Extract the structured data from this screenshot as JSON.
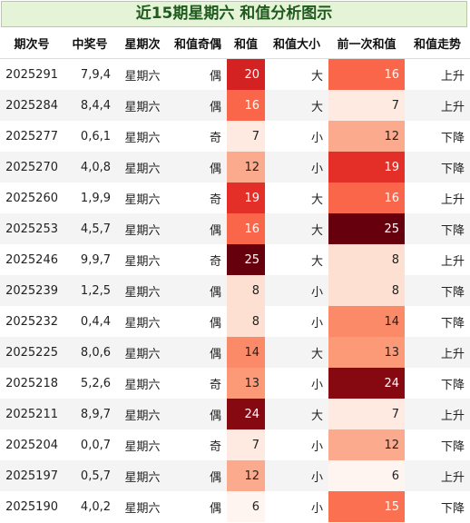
{
  "title": "近15期星期六 和值分析图示",
  "headers": {
    "issue": "期次号",
    "draw": "中奖号",
    "week": "星期次",
    "parity": "和值奇偶",
    "sum": "和值",
    "size": "和值大小",
    "prev_sum": "前一次和值",
    "trend": "和值走势"
  },
  "heat_colors": {
    "6": "#fff5f0",
    "7": "#feeae1",
    "8": "#fee0d2",
    "12": "#fcaa8d",
    "13": "#fc9a77",
    "14": "#fb8a68",
    "15": "#fb7050",
    "16": "#fa6649",
    "19": "#e32f27",
    "20": "#d42121",
    "24": "#860811",
    "25": "#67000d"
  },
  "rows": [
    {
      "issue": "2025291",
      "draw": "7,9,4",
      "week": "星期六",
      "parity": "偶",
      "sum": "20",
      "size": "大",
      "prev_sum": "16",
      "trend": "上升"
    },
    {
      "issue": "2025284",
      "draw": "8,4,4",
      "week": "星期六",
      "parity": "偶",
      "sum": "16",
      "size": "大",
      "prev_sum": "7",
      "trend": "上升"
    },
    {
      "issue": "2025277",
      "draw": "0,6,1",
      "week": "星期六",
      "parity": "奇",
      "sum": "7",
      "size": "小",
      "prev_sum": "12",
      "trend": "下降"
    },
    {
      "issue": "2025270",
      "draw": "4,0,8",
      "week": "星期六",
      "parity": "偶",
      "sum": "12",
      "size": "小",
      "prev_sum": "19",
      "trend": "下降"
    },
    {
      "issue": "2025260",
      "draw": "1,9,9",
      "week": "星期六",
      "parity": "奇",
      "sum": "19",
      "size": "大",
      "prev_sum": "16",
      "trend": "上升"
    },
    {
      "issue": "2025253",
      "draw": "4,5,7",
      "week": "星期六",
      "parity": "偶",
      "sum": "16",
      "size": "大",
      "prev_sum": "25",
      "trend": "下降"
    },
    {
      "issue": "2025246",
      "draw": "9,9,7",
      "week": "星期六",
      "parity": "奇",
      "sum": "25",
      "size": "大",
      "prev_sum": "8",
      "trend": "上升"
    },
    {
      "issue": "2025239",
      "draw": "1,2,5",
      "week": "星期六",
      "parity": "偶",
      "sum": "8",
      "size": "小",
      "prev_sum": "8",
      "trend": "下降"
    },
    {
      "issue": "2025232",
      "draw": "0,4,4",
      "week": "星期六",
      "parity": "偶",
      "sum": "8",
      "size": "小",
      "prev_sum": "14",
      "trend": "下降"
    },
    {
      "issue": "2025225",
      "draw": "8,0,6",
      "week": "星期六",
      "parity": "偶",
      "sum": "14",
      "size": "大",
      "prev_sum": "13",
      "trend": "上升"
    },
    {
      "issue": "2025218",
      "draw": "5,2,6",
      "week": "星期六",
      "parity": "奇",
      "sum": "13",
      "size": "小",
      "prev_sum": "24",
      "trend": "下降"
    },
    {
      "issue": "2025211",
      "draw": "8,9,7",
      "week": "星期六",
      "parity": "偶",
      "sum": "24",
      "size": "大",
      "prev_sum": "7",
      "trend": "上升"
    },
    {
      "issue": "2025204",
      "draw": "0,0,7",
      "week": "星期六",
      "parity": "奇",
      "sum": "7",
      "size": "小",
      "prev_sum": "12",
      "trend": "下降"
    },
    {
      "issue": "2025197",
      "draw": "0,5,7",
      "week": "星期六",
      "parity": "偶",
      "sum": "12",
      "size": "小",
      "prev_sum": "6",
      "trend": "上升"
    },
    {
      "issue": "2025190",
      "draw": "4,0,2",
      "week": "星期六",
      "parity": "偶",
      "sum": "6",
      "size": "小",
      "prev_sum": "15",
      "trend": "下降"
    }
  ]
}
